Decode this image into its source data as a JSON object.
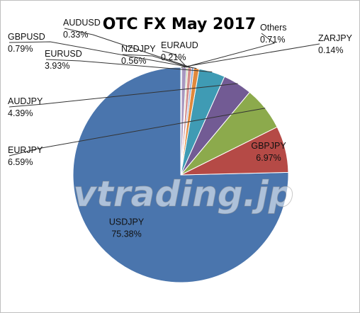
{
  "chart_data": {
    "type": "pie",
    "title": "OTC FX May 2017",
    "watermark": "vtrading.jp",
    "slices": [
      {
        "label": "USDJPY",
        "value": 75.38,
        "value_text": "75.38%",
        "color": "#4a75ad"
      },
      {
        "label": "GBPJPY",
        "value": 6.97,
        "value_text": "6.97%",
        "color": "#b54a46"
      },
      {
        "label": "EURJPY",
        "value": 6.59,
        "value_text": "6.59%",
        "color": "#8caa4c"
      },
      {
        "label": "AUDJPY",
        "value": 4.39,
        "value_text": "4.39%",
        "color": "#725b94"
      },
      {
        "label": "EURUSD",
        "value": 3.93,
        "value_text": "3.93%",
        "color": "#3f9bb4"
      },
      {
        "label": "GBPUSD",
        "value": 0.79,
        "value_text": "0.79%",
        "color": "#e0893c"
      },
      {
        "label": "AUDUSD",
        "value": 0.33,
        "value_text": "0.33%",
        "color": "#8ea9d4"
      },
      {
        "label": "NZDJPY",
        "value": 0.56,
        "value_text": "0.56%",
        "color": "#d48e8c"
      },
      {
        "label": "EURAUD",
        "value": 0.21,
        "value_text": "0.21%",
        "color": "#b8cc8e"
      },
      {
        "label": "Others",
        "value": 0.71,
        "value_text": "0.71%",
        "color": "#a898c0"
      },
      {
        "label": "ZARJPY",
        "value": 0.14,
        "value_text": "0.14%",
        "color": "#7fc2d4"
      }
    ],
    "start_angle": "12 o'clock",
    "direction": "counter-clockwise",
    "legend": "none"
  }
}
